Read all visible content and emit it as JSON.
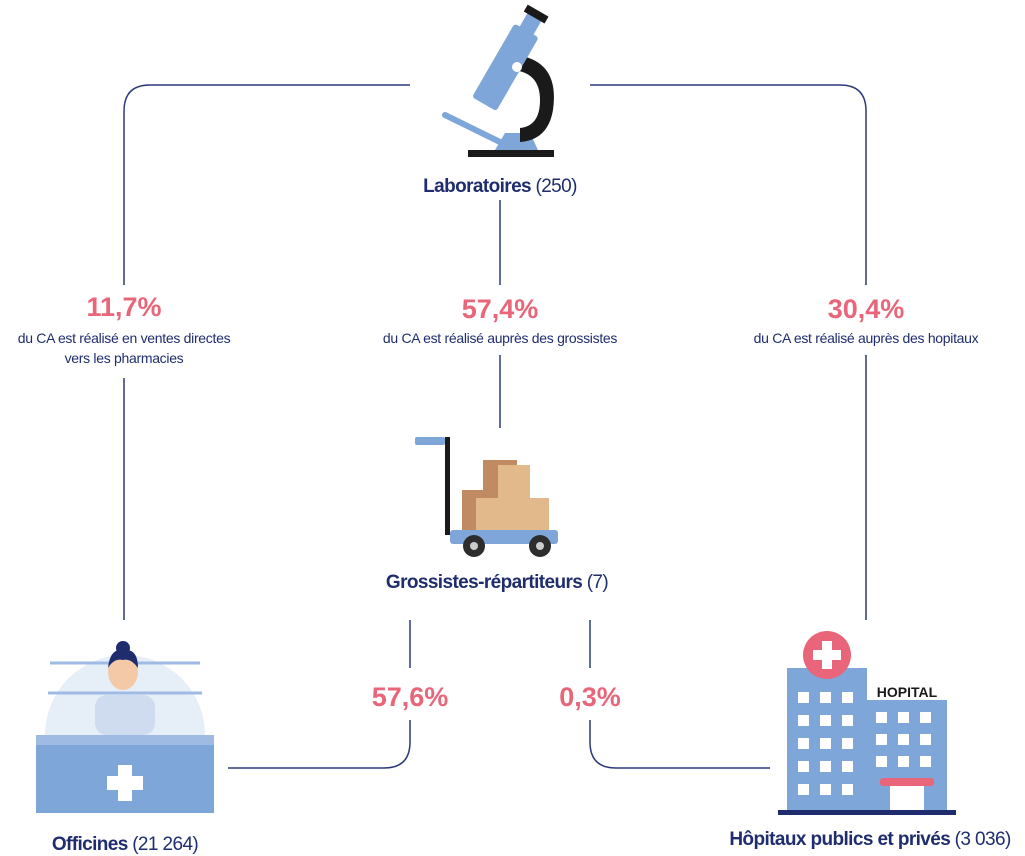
{
  "nodes": {
    "laboratoires": {
      "name": "Laboratoires",
      "count": "(250)"
    },
    "grossistes": {
      "name": "Grossistes-répartiteurs",
      "count": "(7)"
    },
    "officines": {
      "name": "Officines",
      "count": "(21 264)"
    },
    "hopitaux": {
      "name": "Hôpitaux publics et privés",
      "count": "(3 036)"
    }
  },
  "flows": [
    {
      "share": "11,7%",
      "lines": [
        "du CA est réalisé en ventes directes",
        "vers les pharmacies"
      ]
    },
    {
      "share": "57,4%",
      "lines": [
        "du CA est réalisé auprès des grossistes"
      ]
    },
    {
      "share": "30,4%",
      "lines": [
        "du CA est réalisé auprès des hopitaux"
      ]
    },
    {
      "share": "57,6%"
    },
    {
      "share": "0,3%"
    }
  ],
  "icons": {
    "hospital_sign": "HOPITAL"
  }
}
